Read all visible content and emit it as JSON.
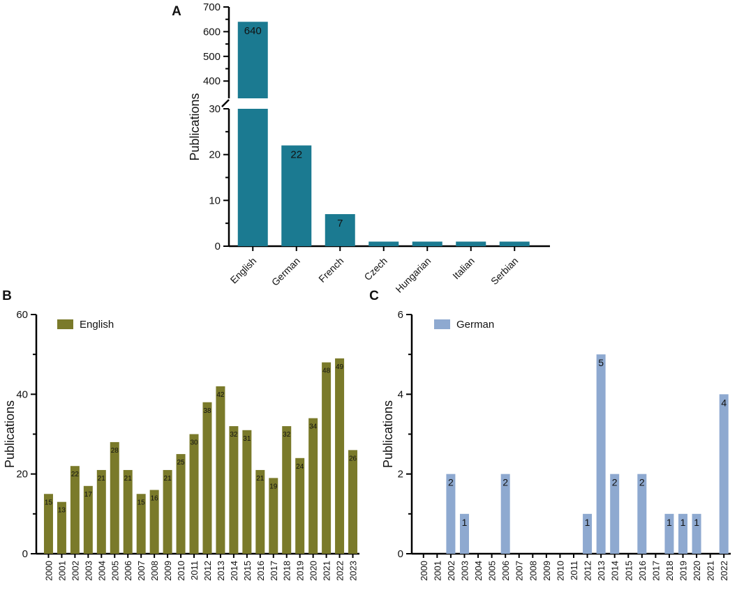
{
  "chart_data": [
    {
      "panel": "A",
      "type": "bar",
      "ylabel": "Publications",
      "axis_break": {
        "lower_range": [
          0,
          30
        ],
        "upper_range": [
          330,
          700
        ]
      },
      "lower_ticks": [
        0,
        10,
        20,
        30
      ],
      "upper_ticks": [
        400,
        500,
        600,
        700
      ],
      "categories": [
        "English",
        "German",
        "French",
        "Czech",
        "Hungarian",
        "Italian",
        "Serbian"
      ],
      "values": [
        640,
        22,
        7,
        1,
        1,
        1,
        1
      ],
      "data_labels": [
        "640",
        "22",
        "7",
        "",
        "",
        "",
        ""
      ],
      "color": "#1b7a91"
    },
    {
      "panel": "B",
      "type": "bar",
      "ylabel": "Publications",
      "legend": "English",
      "ylim": [
        0,
        60
      ],
      "yticks": [
        0,
        20,
        40,
        60
      ],
      "categories": [
        "2000",
        "2001",
        "2002",
        "2003",
        "2004",
        "2005",
        "2006",
        "2007",
        "2008",
        "2009",
        "2010",
        "2011",
        "2012",
        "2013",
        "2014",
        "2015",
        "2016",
        "2017",
        "2018",
        "2019",
        "2020",
        "2021",
        "2022",
        "2023"
      ],
      "values": [
        15,
        13,
        22,
        17,
        21,
        28,
        21,
        15,
        16,
        21,
        25,
        30,
        38,
        42,
        32,
        31,
        21,
        19,
        32,
        24,
        34,
        48,
        49,
        26
      ],
      "color": "#7a7a2a"
    },
    {
      "panel": "C",
      "type": "bar",
      "ylabel": "Publications",
      "legend": "German",
      "ylim": [
        0,
        6
      ],
      "yticks": [
        0,
        2,
        4,
        6
      ],
      "categories": [
        "2000",
        "2001",
        "2002",
        "2003",
        "2004",
        "2005",
        "2006",
        "2007",
        "2008",
        "2009",
        "2010",
        "2011",
        "2012",
        "2013",
        "2014",
        "2015",
        "2016",
        "2017",
        "2018",
        "2019",
        "2020",
        "2021",
        "2022"
      ],
      "values": [
        0,
        0,
        2,
        1,
        0,
        0,
        2,
        0,
        0,
        0,
        0,
        0,
        1,
        5,
        2,
        0,
        2,
        0,
        1,
        1,
        1,
        0,
        4
      ],
      "color": "#8ea9d0"
    }
  ]
}
